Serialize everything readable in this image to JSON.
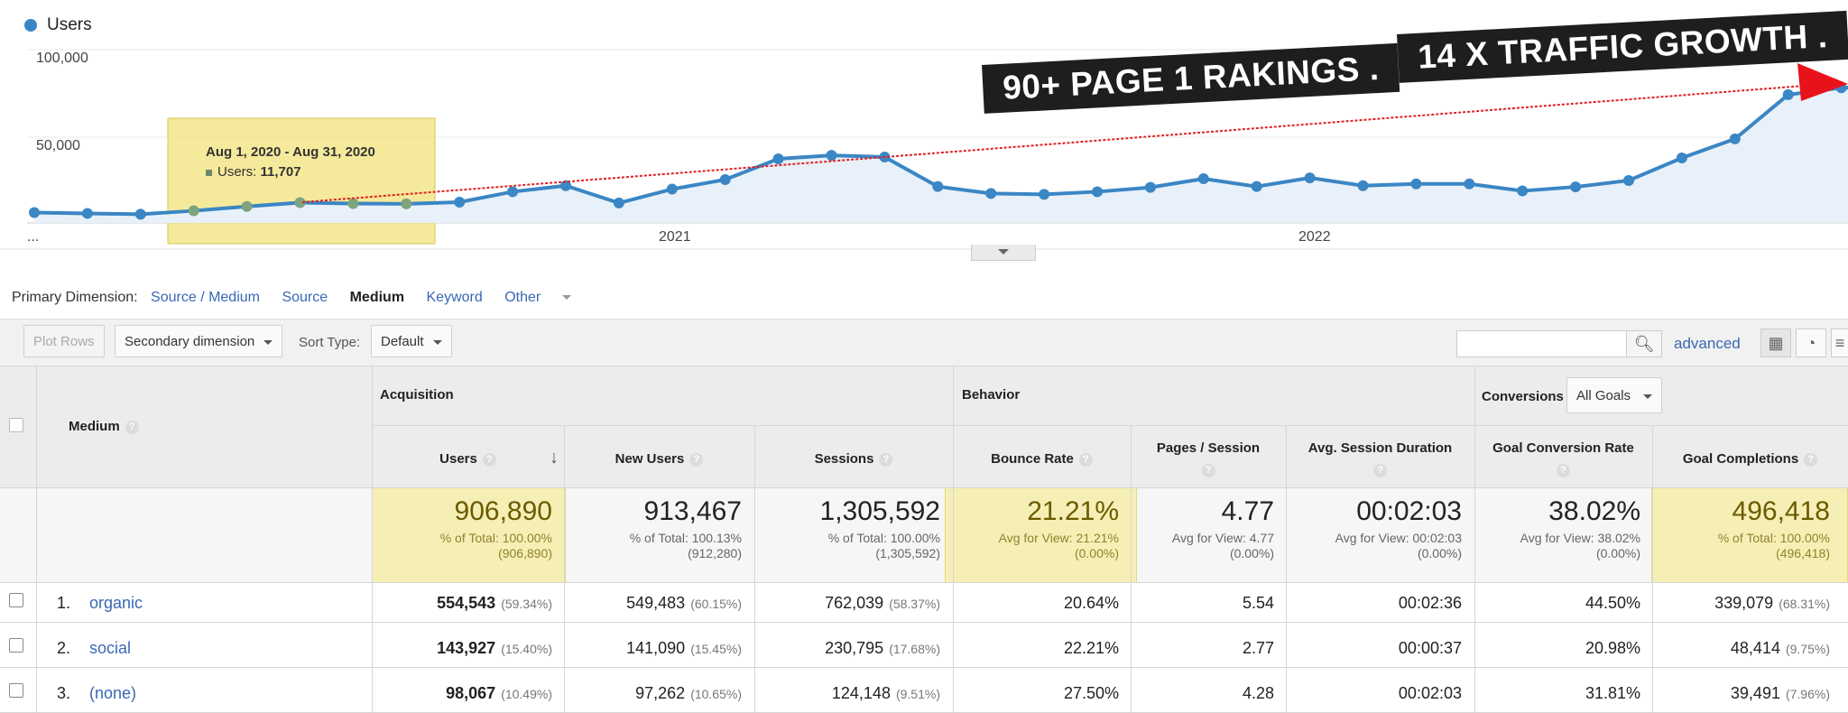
{
  "chart": {
    "legend": "Users",
    "y_ticks": [
      "100,000",
      "50,000"
    ],
    "x_ticks": [
      "...",
      "2021",
      "2022"
    ],
    "banner_left": "90+ PAGE 1 RAKINGS .",
    "banner_right": "14 X TRAFFIC GROWTH .",
    "tooltip_title": "Aug 1, 2020 - Aug 31, 2020",
    "tooltip_label": "Users:",
    "tooltip_value": "11,707",
    "colors": {
      "series": "#3b86c4",
      "area": "#e8f1f9",
      "trend": "#e02020",
      "highlight": "#f2e27a"
    }
  },
  "chart_data": {
    "type": "area",
    "title": "",
    "series": [
      {
        "name": "Users",
        "values": [
          6000,
          5500,
          5000,
          7000,
          9500,
          11707,
          11200,
          11000,
          12000,
          18000,
          21500,
          11500,
          19500,
          25000,
          37000,
          39000,
          38000,
          21000,
          17000,
          16500,
          18000,
          20500,
          25500,
          21000,
          26000,
          21500,
          22500,
          22500,
          18500,
          20800,
          24500,
          37500,
          48500,
          74000,
          78000
        ]
      }
    ],
    "x_ticks": [
      "2021",
      "2022"
    ],
    "ylim": [
      0,
      100000
    ],
    "y_ticks": [
      50000,
      100000
    ],
    "grid": true,
    "legend": "top-left"
  },
  "primary_dimension": {
    "label": "Primary Dimension:",
    "options": [
      "Source / Medium",
      "Source",
      "Medium",
      "Keyword",
      "Other"
    ],
    "active": "Medium"
  },
  "toolbar": {
    "plot_rows": "Plot Rows",
    "secondary_dimension": "Secondary dimension",
    "sort_type_label": "Sort Type:",
    "sort_type_value": "Default",
    "search_placeholder": "",
    "advanced": "advanced"
  },
  "table": {
    "dimension_header": "Medium",
    "groups": {
      "acquisition": "Acquisition",
      "behavior": "Behavior",
      "conversions": "Conversions",
      "goals_select": "All Goals"
    },
    "columns": [
      "Users",
      "New Users",
      "Sessions",
      "Bounce Rate",
      "Pages / Session",
      "Avg. Session Duration",
      "Goal Conversion Rate",
      "Goal Completions"
    ],
    "totals": [
      {
        "value": "906,890",
        "sub1": "% of Total: 100.00%",
        "sub2": "(906,890)"
      },
      {
        "value": "913,467",
        "sub1": "% of Total: 100.13%",
        "sub2": "(912,280)"
      },
      {
        "value": "1,305,592",
        "sub1": "% of Total: 100.00%",
        "sub2": "(1,305,592)"
      },
      {
        "value": "21.21%",
        "sub1": "Avg for View: 21.21%",
        "sub2": "(0.00%)"
      },
      {
        "value": "4.77",
        "sub1": "Avg for View: 4.77",
        "sub2": "(0.00%)"
      },
      {
        "value": "00:02:03",
        "sub1": "Avg for View: 00:02:03",
        "sub2": "(0.00%)"
      },
      {
        "value": "38.02%",
        "sub1": "Avg for View: 38.02%",
        "sub2": "(0.00%)"
      },
      {
        "value": "496,418",
        "sub1": "% of Total: 100.00%",
        "sub2": "(496,418)"
      }
    ],
    "rows": [
      {
        "num": "1.",
        "medium": "organic",
        "cells": [
          [
            "554,543",
            "(59.34%)"
          ],
          [
            "549,483",
            "(60.15%)"
          ],
          [
            "762,039",
            "(58.37%)"
          ],
          [
            "20.64%",
            ""
          ],
          [
            "5.54",
            ""
          ],
          [
            "00:02:36",
            ""
          ],
          [
            "44.50%",
            ""
          ],
          [
            "339,079",
            "(68.31%)"
          ]
        ]
      },
      {
        "num": "2.",
        "medium": "social",
        "cells": [
          [
            "143,927",
            "(15.40%)"
          ],
          [
            "141,090",
            "(15.45%)"
          ],
          [
            "230,795",
            "(17.68%)"
          ],
          [
            "22.21%",
            ""
          ],
          [
            "2.77",
            ""
          ],
          [
            "00:00:37",
            ""
          ],
          [
            "20.98%",
            ""
          ],
          [
            "48,414",
            "(9.75%)"
          ]
        ]
      },
      {
        "num": "3.",
        "medium": "(none)",
        "cells": [
          [
            "98,067",
            "(10.49%)"
          ],
          [
            "97,262",
            "(10.65%)"
          ],
          [
            "124,148",
            "(9.51%)"
          ],
          [
            "27.50%",
            ""
          ],
          [
            "4.28",
            ""
          ],
          [
            "00:02:03",
            ""
          ],
          [
            "31.81%",
            ""
          ],
          [
            "39,491",
            "(7.96%)"
          ]
        ]
      }
    ]
  }
}
